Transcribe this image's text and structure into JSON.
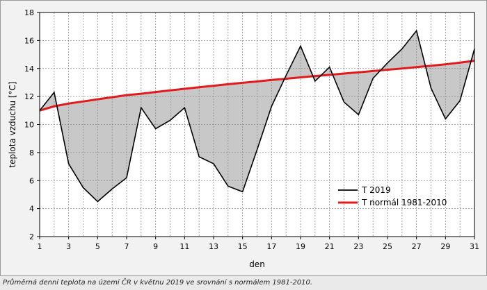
{
  "chart_data": {
    "type": "line",
    "title": "",
    "xlabel": "den",
    "ylabel": "teplota vzduchu [°C]",
    "xlim": [
      1,
      31
    ],
    "ylim": [
      2,
      18
    ],
    "xticks": [
      1,
      3,
      5,
      7,
      9,
      11,
      13,
      15,
      17,
      19,
      21,
      23,
      25,
      27,
      29,
      31
    ],
    "yticks": [
      2,
      4,
      6,
      8,
      10,
      12,
      14,
      16,
      18
    ],
    "grid": true,
    "legend_position": "bottom-right",
    "fill_between_series": true,
    "x": [
      1,
      2,
      3,
      4,
      5,
      6,
      7,
      8,
      9,
      10,
      11,
      12,
      13,
      14,
      15,
      16,
      17,
      18,
      19,
      20,
      21,
      22,
      23,
      24,
      25,
      26,
      27,
      28,
      29,
      30,
      31
    ],
    "series": [
      {
        "name": "T 2019",
        "color": "#000000",
        "values": [
          11.0,
          12.3,
          7.2,
          5.5,
          4.5,
          5.4,
          6.2,
          11.2,
          9.7,
          10.3,
          11.2,
          7.7,
          7.2,
          5.6,
          5.2,
          8.2,
          11.3,
          13.5,
          15.6,
          13.1,
          14.1,
          11.6,
          10.7,
          13.3,
          14.4,
          15.4,
          16.7,
          12.6,
          10.4,
          11.7,
          15.4
        ]
      },
      {
        "name": "T normál 1981-2010",
        "color": "#e31a1c",
        "values": [
          11.0,
          11.3,
          11.5,
          11.65,
          11.8,
          11.95,
          12.1,
          12.2,
          12.32,
          12.44,
          12.55,
          12.66,
          12.77,
          12.88,
          12.98,
          13.08,
          13.18,
          13.27,
          13.37,
          13.46,
          13.55,
          13.64,
          13.73,
          13.82,
          13.91,
          14.0,
          14.1,
          14.2,
          14.3,
          14.42,
          14.55
        ]
      }
    ],
    "fill_color": "#c8c8c8"
  },
  "caption": "Průměrná denní teplota na území ČR v květnu 2019 ve srovnání s normálem 1981-2010."
}
